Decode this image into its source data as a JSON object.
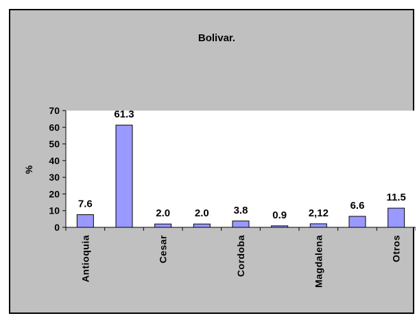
{
  "chart_data": {
    "type": "bar",
    "title": "Bolivar.",
    "ylabel": "%",
    "xlabel": "",
    "ylim": [
      0,
      70
    ],
    "yticks": [
      0,
      10,
      20,
      30,
      40,
      50,
      60,
      70
    ],
    "categories": [
      "Antioquia",
      "",
      "Cesar",
      "",
      "Cordoba",
      "",
      "Magdalena",
      "",
      "Otros"
    ],
    "values": [
      7.6,
      61.3,
      2.0,
      2.0,
      3.8,
      0.9,
      2.12,
      6.6,
      11.5
    ],
    "data_labels": [
      "7.6",
      "61.3",
      "2.0",
      "2.0",
      "3.8",
      "0.9",
      "2,12",
      "6.6",
      "11.5"
    ],
    "grid": false,
    "legend": "none",
    "colors": {
      "bar_fill": "#9999ff",
      "background": "#c0c0c0",
      "plot_area": "#ffffff"
    }
  }
}
